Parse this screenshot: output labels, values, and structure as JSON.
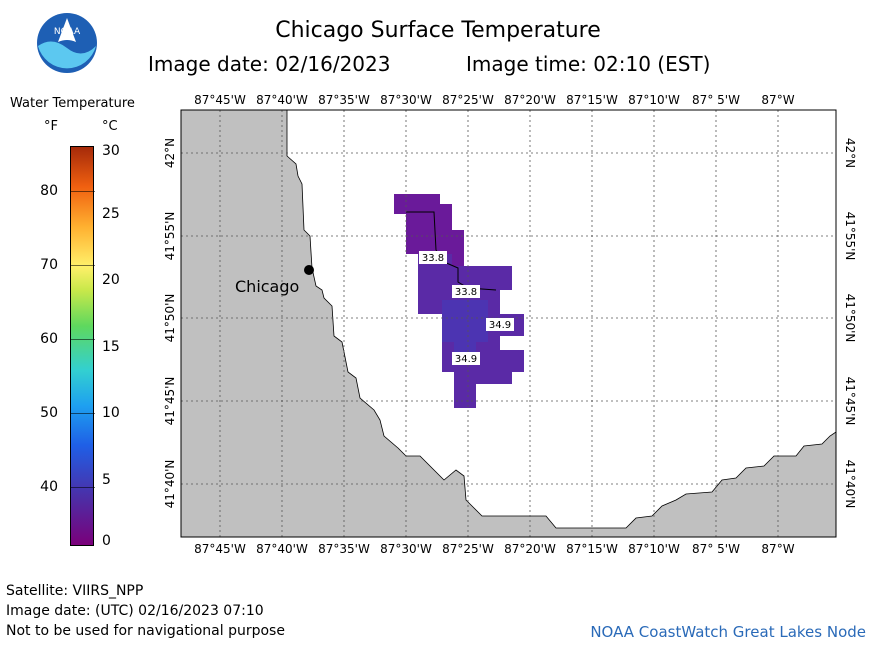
{
  "header": {
    "title": "Chicago Surface Temperature",
    "image_date": "Image date: 02/16/2023",
    "image_time": "Image time: 02:10 (EST)"
  },
  "logo": {
    "text": "NOAA",
    "icon": "noaa-logo-icon",
    "colors": {
      "blue": "#1e5fb4",
      "light": "#5cc8f0"
    }
  },
  "legend": {
    "title": "Water Temperature",
    "unit_f": "°F",
    "unit_c": "°C",
    "f_ticks": [
      "80",
      "70",
      "60",
      "50",
      "40"
    ],
    "c_ticks": [
      "30",
      "25",
      "20",
      "15",
      "10",
      "5",
      "0"
    ]
  },
  "map": {
    "top_lon_labels": [
      "87°45'W",
      "87°40'W",
      "87°35'W",
      "87°30'W",
      "87°25'W",
      "87°20'W",
      "87°15'W",
      "87°10'W",
      "87° 5'W",
      "87°W"
    ],
    "bottom_lon_labels": [
      "87°45'W",
      "87°40'W",
      "87°35'W",
      "87°30'W",
      "87°25'W",
      "87°20'W",
      "87°15'W",
      "87°10'W",
      "87° 5'W",
      "87°W"
    ],
    "lat_labels": [
      "42°N",
      "41°55'N",
      "41°50'N",
      "41°45'N",
      "41°40'N"
    ],
    "city": "Chicago",
    "temp_labels": [
      "33.8",
      "33.8",
      "34.9",
      "34.9"
    ],
    "land_color": "#c0c0c0",
    "water_color": "#ffffff"
  },
  "footer": {
    "satellite": "Satellite: VIIRS_NPP",
    "utc_date": "Image date: (UTC) 02/16/2023  07:10",
    "disclaimer": "Not to be used for navigational purpose",
    "credit": "NOAA CoastWatch Great Lakes Node"
  }
}
